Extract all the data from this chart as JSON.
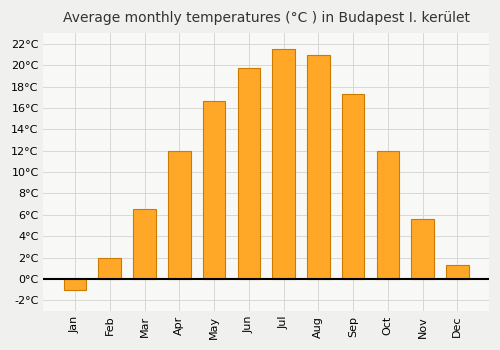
{
  "title": "Average monthly temperatures (°C ) in Budapest I. kerület",
  "months": [
    "Jan",
    "Feb",
    "Mar",
    "Apr",
    "May",
    "Jun",
    "Jul",
    "Aug",
    "Sep",
    "Oct",
    "Nov",
    "Dec"
  ],
  "values": [
    -1.0,
    2.0,
    6.5,
    12.0,
    16.7,
    19.7,
    21.5,
    21.0,
    17.3,
    12.0,
    5.6,
    1.3
  ],
  "bar_color": "#FFA726",
  "bar_edge_color": "#CC7A00",
  "background_color": "#f0f0ee",
  "plot_bg_color": "#f8f8f6",
  "grid_color": "#d8d8d8",
  "ylim": [
    -3,
    23
  ],
  "yticks": [
    -2,
    0,
    2,
    4,
    6,
    8,
    10,
    12,
    14,
    16,
    18,
    20,
    22
  ],
  "title_fontsize": 10,
  "tick_fontsize": 8,
  "title_color": "#333333"
}
